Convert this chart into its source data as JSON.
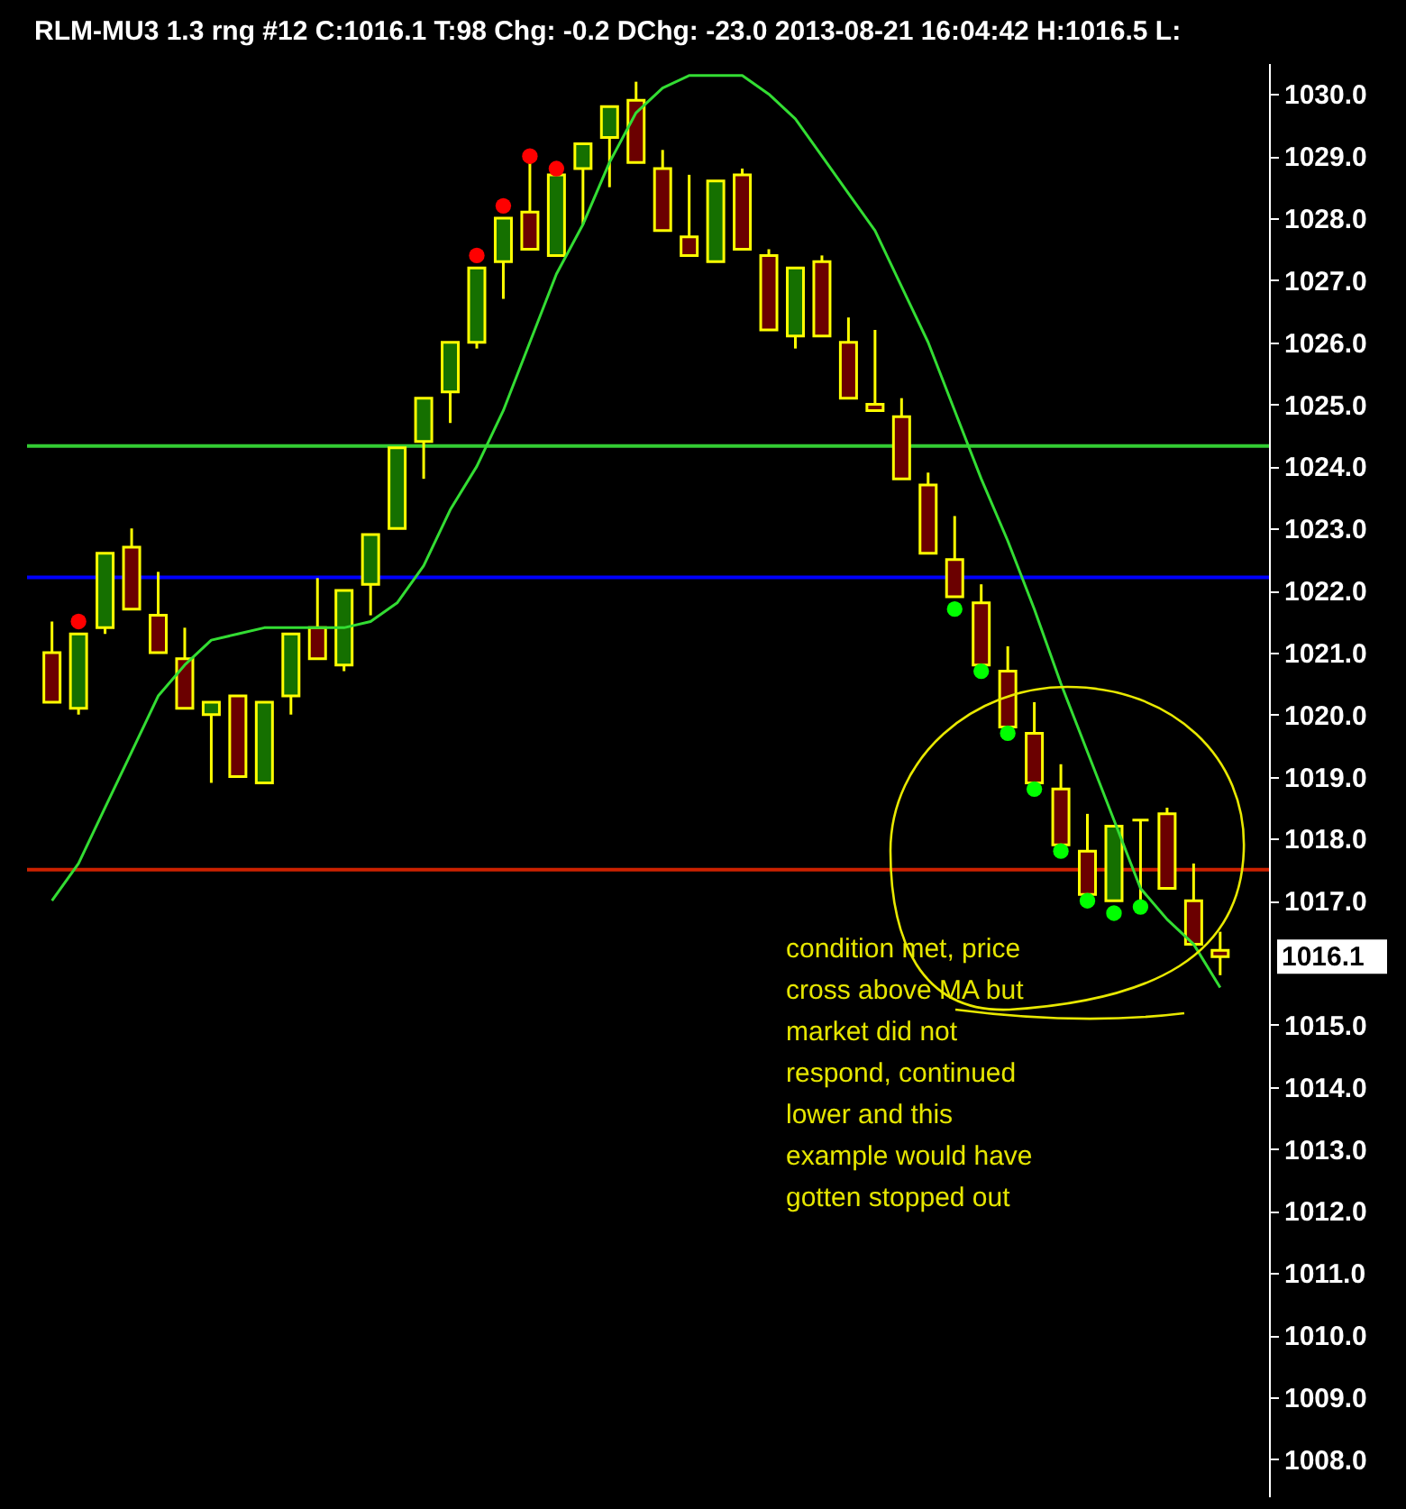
{
  "chart_data": {
    "type": "candlestick",
    "title": "RLM-MU3  1.3 rng  #12 C:1016.1 T:98 Chg: -0.2 DChg: -23.0 2013-08-21 16:04:42 H:1016.5 L:",
    "categories": [
      null,
      null,
      null,
      null,
      null,
      null,
      null,
      null,
      null,
      null,
      null,
      null,
      null,
      null,
      null,
      null,
      null,
      null,
      null,
      null,
      null,
      null,
      null,
      null,
      null,
      null,
      null,
      null,
      null,
      null,
      null,
      null,
      null,
      null,
      null,
      null,
      null,
      null,
      null,
      null,
      null,
      null,
      null,
      null,
      null
    ],
    "ohlc": [
      [
        1021.0,
        1021.5,
        1020.2,
        1020.2
      ],
      [
        1020.1,
        1021.3,
        1020.0,
        1021.3
      ],
      [
        1021.4,
        1022.6,
        1021.3,
        1022.6
      ],
      [
        1022.7,
        1023.0,
        1021.7,
        1021.7
      ],
      [
        1021.6,
        1022.3,
        1021.0,
        1021.0
      ],
      [
        1020.9,
        1021.4,
        1020.1,
        1020.1
      ],
      [
        1020.0,
        1020.2,
        1018.9,
        1020.2
      ],
      [
        1020.3,
        1020.3,
        1019.0,
        1019.0
      ],
      [
        1018.9,
        1020.2,
        1018.9,
        1020.2
      ],
      [
        1020.3,
        1021.3,
        1020.0,
        1021.3
      ],
      [
        1021.4,
        1022.2,
        1020.9,
        1020.9
      ],
      [
        1020.8,
        1022.0,
        1020.7,
        1022.0
      ],
      [
        1022.1,
        1022.9,
        1021.6,
        1022.9
      ],
      [
        1023.0,
        1024.3,
        1023.0,
        1024.3
      ],
      [
        1024.4,
        1025.1,
        1023.8,
        1025.1
      ],
      [
        1025.2,
        1026.0,
        1024.7,
        1026.0
      ],
      [
        1026.0,
        1027.2,
        1025.9,
        1027.2
      ],
      [
        1027.3,
        1028.0,
        1026.7,
        1028.0
      ],
      [
        1028.1,
        1028.9,
        1027.5,
        1027.5
      ],
      [
        1027.4,
        1028.7,
        1027.4,
        1028.7
      ],
      [
        1028.8,
        1029.2,
        1027.9,
        1029.2
      ],
      [
        1029.3,
        1029.8,
        1028.5,
        1029.8
      ],
      [
        1029.9,
        1030.2,
        1028.9,
        1028.9
      ],
      [
        1028.8,
        1029.1,
        1027.8,
        1027.8
      ],
      [
        1027.7,
        1028.7,
        1027.4,
        1027.4
      ],
      [
        1027.3,
        1028.6,
        1027.3,
        1028.6
      ],
      [
        1028.7,
        1028.8,
        1027.5,
        1027.5
      ],
      [
        1027.4,
        1027.5,
        1026.2,
        1026.2
      ],
      [
        1026.1,
        1027.2,
        1025.9,
        1027.2
      ],
      [
        1027.3,
        1027.4,
        1026.1,
        1026.1
      ],
      [
        1026.0,
        1026.4,
        1025.1,
        1025.1
      ],
      [
        1025.0,
        1026.2,
        1024.9,
        1024.9
      ],
      [
        1024.8,
        1025.1,
        1023.8,
        1023.8
      ],
      [
        1023.7,
        1023.9,
        1022.6,
        1022.6
      ],
      [
        1022.5,
        1023.2,
        1021.9,
        1021.9
      ],
      [
        1021.8,
        1022.1,
        1020.8,
        1020.8
      ],
      [
        1020.7,
        1021.1,
        1019.8,
        1019.8
      ],
      [
        1019.7,
        1020.2,
        1018.9,
        1018.9
      ],
      [
        1018.8,
        1019.2,
        1017.9,
        1017.9
      ],
      [
        1017.8,
        1018.4,
        1017.1,
        1017.1
      ],
      [
        1017.0,
        1018.2,
        1017.0,
        1018.2
      ],
      [
        1018.3,
        1018.3,
        1017.0,
        1018.3
      ],
      [
        1018.4,
        1018.5,
        1017.2,
        1017.2
      ],
      [
        1017.0,
        1017.6,
        1016.3,
        1016.3
      ],
      [
        1016.2,
        1016.5,
        1015.8,
        1016.1
      ]
    ],
    "colors": [
      "#6b0000",
      "#157000",
      "#157000",
      "#6b0000",
      "#6b0000",
      "#6b0000",
      "#157000",
      "#6b0000",
      "#157000",
      "#157000",
      "#6b0000",
      "#157000",
      "#157000",
      "#157000",
      "#157000",
      "#157000",
      "#157000",
      "#157000",
      "#6b0000",
      "#157000",
      "#157000",
      "#157000",
      "#6b0000",
      "#6b0000",
      "#6b0000",
      "#157000",
      "#6b0000",
      "#6b0000",
      "#157000",
      "#6b0000",
      "#6b0000",
      "#6b0000",
      "#6b0000",
      "#6b0000",
      "#6b0000",
      "#6b0000",
      "#6b0000",
      "#6b0000",
      "#6b0000",
      "#6b0000",
      "#157000",
      "#ffff00",
      "#6b0000",
      "#6b0000",
      "#6b0000"
    ],
    "series": [
      {
        "type": "line",
        "color": "#33dd33",
        "values": [
          1017.0,
          1017.6,
          1018.5,
          1019.4,
          1020.3,
          1020.8,
          1021.2,
          1021.3,
          1021.4,
          1021.4,
          1021.4,
          1021.4,
          1021.5,
          1021.8,
          1022.4,
          1023.3,
          1024.0,
          1024.9,
          1026.0,
          1027.1,
          1027.9,
          1028.9,
          1029.7,
          1030.1,
          1030.3,
          1030.3,
          1030.3,
          1030.0,
          1029.6,
          1029.0,
          1028.4,
          1027.8,
          1026.9,
          1026.0,
          1024.9,
          1023.8,
          1022.8,
          1021.7,
          1020.5,
          1019.4,
          1018.3,
          1017.2,
          1016.7,
          1016.3,
          1015.6
        ]
      },
      {
        "type": "scatter",
        "color": "#ff0000",
        "marker": "circle",
        "values": [
          null,
          1021.5,
          null,
          null,
          null,
          null,
          null,
          null,
          null,
          null,
          null,
          null,
          null,
          null,
          null,
          null,
          1027.4,
          1028.2,
          1029.0,
          1028.8,
          null,
          null,
          null,
          null,
          null,
          null,
          null,
          null,
          null,
          null,
          null,
          null,
          null,
          null,
          null,
          null,
          null,
          null,
          null,
          null,
          null,
          null,
          null,
          null,
          null
        ]
      },
      {
        "type": "scatter",
        "color": "#00ff00",
        "marker": "circle",
        "values": [
          null,
          null,
          null,
          null,
          null,
          null,
          null,
          null,
          null,
          null,
          null,
          null,
          null,
          null,
          null,
          null,
          null,
          null,
          null,
          null,
          null,
          null,
          null,
          null,
          null,
          null,
          null,
          null,
          null,
          null,
          null,
          null,
          null,
          null,
          1021.7,
          1020.7,
          1019.7,
          1018.8,
          1017.8,
          1017.0,
          1016.8,
          1016.9,
          null,
          null,
          null
        ]
      }
    ],
    "ylim": [
      1007.4,
      1030.5
    ],
    "yticks": [
      {
        "value": 1008,
        "label": "1008.0"
      },
      {
        "value": 1009,
        "label": "1009.0"
      },
      {
        "value": 1010,
        "label": "1010.0"
      },
      {
        "value": 1011,
        "label": "1011.0"
      },
      {
        "value": 1012,
        "label": "1012.0"
      },
      {
        "value": 1013,
        "label": "1013.0"
      },
      {
        "value": 1014,
        "label": "1014.0"
      },
      {
        "value": 1015,
        "label": "1015.0"
      },
      {
        "value": 1017,
        "label": "1017.0"
      },
      {
        "value": 1018,
        "label": "1018.0"
      },
      {
        "value": 1019,
        "label": "1019.0"
      },
      {
        "value": 1020,
        "label": "1020.0"
      },
      {
        "value": 1021,
        "label": "1021.0"
      },
      {
        "value": 1022,
        "label": "1022.0"
      },
      {
        "value": 1023,
        "label": "1023.0"
      },
      {
        "value": 1024,
        "label": "1024.0"
      },
      {
        "value": 1025,
        "label": "1025.0"
      },
      {
        "value": 1026,
        "label": "1026.0"
      },
      {
        "value": 1027,
        "label": "1027.0"
      },
      {
        "value": 1028,
        "label": "1028.0"
      },
      {
        "value": 1029,
        "label": "1029.0"
      },
      {
        "value": 1030,
        "label": "1030.0"
      }
    ],
    "ref_lines": [
      {
        "axis": "y",
        "value": 1024.33,
        "color": "#33cc33"
      },
      {
        "axis": "y",
        "value": 1022.21,
        "color": "#0000ff"
      },
      {
        "axis": "y",
        "value": 1017.5,
        "color": "#cc2200"
      }
    ],
    "annotations": [
      "condition met, price cross above MA but market did not respond, continued lower and this example would have gotten stopped out",
      "1016.1"
    ],
    "tick_labels": "y"
  }
}
